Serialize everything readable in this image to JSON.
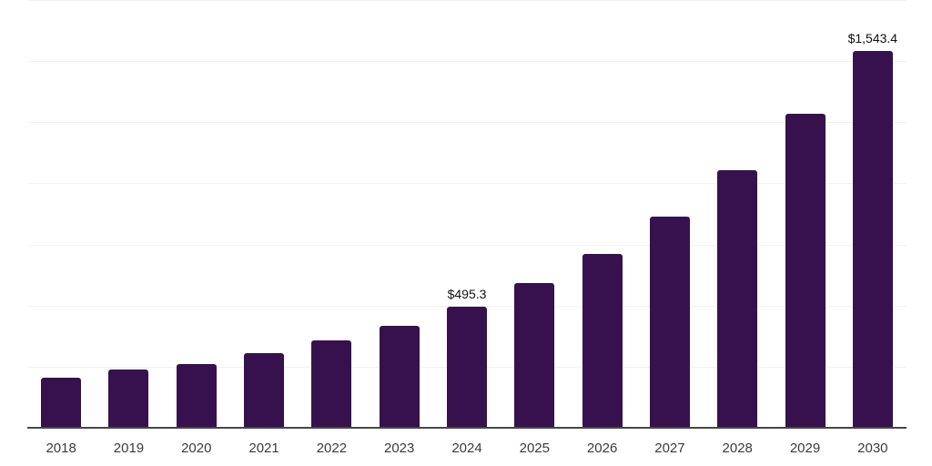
{
  "chart_data": {
    "type": "bar",
    "categories": [
      "2018",
      "2019",
      "2020",
      "2021",
      "2022",
      "2023",
      "2024",
      "2025",
      "2026",
      "2027",
      "2028",
      "2029",
      "2030"
    ],
    "values": [
      205,
      238,
      261,
      306,
      356,
      418,
      495.3,
      593,
      713,
      863,
      1054,
      1284,
      1543.4
    ],
    "value_labels": [
      "",
      "",
      "",
      "",
      "",
      "",
      "$495.3",
      "",
      "",
      "",
      "",
      "",
      "$1,543.4"
    ],
    "title": "",
    "xlabel": "",
    "ylabel": "",
    "ylim": [
      0,
      1750
    ],
    "grid_step": 250,
    "grid": "horizontal",
    "legend": "none",
    "y_tick_labels_visible": false
  },
  "colors": {
    "background": "#FFFFFF",
    "bar": "#37114D",
    "gridline": "#F1F1F1",
    "axis": "#474747",
    "value_label": "#111111",
    "tick_label": "#3B3B3B"
  }
}
